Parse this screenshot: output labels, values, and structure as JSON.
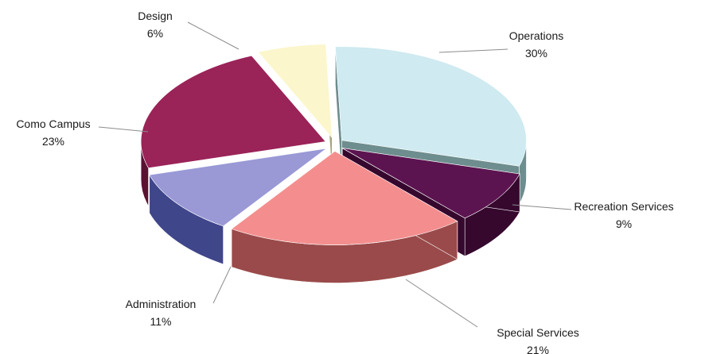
{
  "chart_data": {
    "type": "pie",
    "title": "",
    "slices": [
      {
        "label": "Operations",
        "value": 30,
        "value_label": "30%",
        "top": "#cfeaf0",
        "side": "#6e8d8e"
      },
      {
        "label": "Recreation Services",
        "value": 9,
        "value_label": "9%",
        "top": "#5c1450",
        "side": "#36082e"
      },
      {
        "label": "Special Services",
        "value": 21,
        "value_label": "21%",
        "top": "#f48e8e",
        "side": "#9a4a4a"
      },
      {
        "label": "Administration",
        "value": 11,
        "value_label": "11%",
        "top": "#9a99d6",
        "side": "#3f468a"
      },
      {
        "label": "Como Campus",
        "value": 23,
        "value_label": "23%",
        "top": "#9a2358",
        "side": "#5a1232"
      },
      {
        "label": "Design",
        "value": 6,
        "value_label": "6%",
        "top": "#fbf6cc",
        "side": "#a8a27e"
      }
    ],
    "exploded": true,
    "legend": "none",
    "labels": "outside-with-leader-lines"
  }
}
